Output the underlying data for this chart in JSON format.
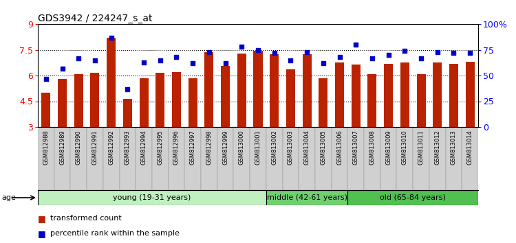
{
  "title": "GDS3942 / 224247_s_at",
  "samples": [
    "GSM812988",
    "GSM812989",
    "GSM812990",
    "GSM812991",
    "GSM812992",
    "GSM812993",
    "GSM812994",
    "GSM812995",
    "GSM812996",
    "GSM812997",
    "GSM812998",
    "GSM812999",
    "GSM813000",
    "GSM813001",
    "GSM813002",
    "GSM813003",
    "GSM813004",
    "GSM813005",
    "GSM813006",
    "GSM813007",
    "GSM813008",
    "GSM813009",
    "GSM813010",
    "GSM813011",
    "GSM813012",
    "GSM813013",
    "GSM813014"
  ],
  "bar_values": [
    5.0,
    5.8,
    6.1,
    6.15,
    8.2,
    4.65,
    5.85,
    6.15,
    6.2,
    5.85,
    7.35,
    6.55,
    7.3,
    7.45,
    7.25,
    6.35,
    7.25,
    5.85,
    6.75,
    6.65,
    6.1,
    6.7,
    6.75,
    6.1,
    6.75,
    6.7,
    6.8
  ],
  "dot_values": [
    47,
    57,
    67,
    65,
    87,
    37,
    63,
    65,
    68,
    62,
    73,
    62,
    78,
    75,
    72,
    65,
    73,
    62,
    68,
    80,
    67,
    70,
    74,
    67,
    73,
    72,
    72
  ],
  "groups": [
    {
      "label": "young (19-31 years)",
      "start": 0,
      "end": 14,
      "color": "#c0efc0"
    },
    {
      "label": "middle (42-61 years)",
      "start": 14,
      "end": 19,
      "color": "#70d070"
    },
    {
      "label": "old (65-84 years)",
      "start": 19,
      "end": 27,
      "color": "#50c050"
    }
  ],
  "bar_color": "#bb2200",
  "dot_color": "#0000cc",
  "y_min": 3,
  "y_max": 9,
  "yticks_left": [
    3,
    4.5,
    6.0,
    7.5,
    9
  ],
  "ytick_labels_left": [
    "3",
    "4.5",
    "6",
    "7.5",
    "9"
  ],
  "yticks_right": [
    0,
    25,
    50,
    75,
    100
  ],
  "ytick_labels_right": [
    "0",
    "25",
    "50",
    "75",
    "100%"
  ],
  "hgrid_vals": [
    4.5,
    6.0,
    7.5
  ],
  "xtick_bg_color": "#d0d0d0",
  "age_label": "age",
  "legend_items": [
    {
      "color": "#bb2200",
      "label": "transformed count"
    },
    {
      "color": "#0000cc",
      "label": "percentile rank within the sample"
    }
  ]
}
